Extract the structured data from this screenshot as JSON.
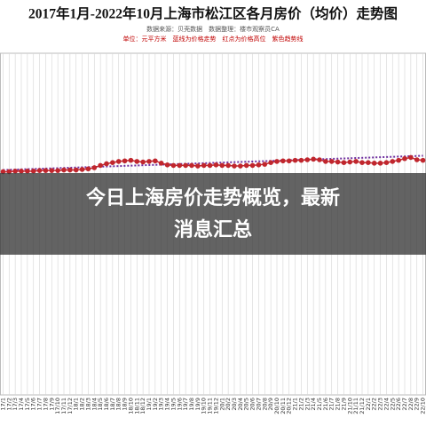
{
  "chart_data": {
    "type": "line",
    "title": "2017年1月-2022年10月上海市松江区各月房价（均价）走势图",
    "annotations": [
      "数据来源：贝壳数据　数据整理：楼市观察员CA",
      "单位：元平方米　蓝线为价格走势　红点为价格高位　紫色趋势线"
    ],
    "categories": [
      "17/1",
      "17/2",
      "17/3",
      "17/4",
      "17/5",
      "17/6",
      "17/7",
      "17/8",
      "17/9",
      "17/10",
      "17/11",
      "17/12",
      "18/1",
      "18/2",
      "18/3",
      "18/4",
      "18/5",
      "18/6",
      "18/7",
      "18/8",
      "18/9",
      "18/10",
      "18/11",
      "18/12",
      "19/1",
      "19/2",
      "19/3",
      "19/4",
      "19/5",
      "19/6",
      "19/7",
      "19/8",
      "19/9",
      "19/10",
      "19/11",
      "19/12",
      "20/1",
      "20/2",
      "20/3",
      "20/4",
      "20/5",
      "20/6",
      "20/7",
      "20/8",
      "20/9",
      "20/10",
      "20/11",
      "20/12",
      "21/1",
      "21/2",
      "21/3",
      "21/4",
      "21/5",
      "21/6",
      "21/7",
      "21/8",
      "21/9",
      "21/10",
      "21/11",
      "21/12",
      "22/1",
      "22/2",
      "22/3",
      "22/4",
      "22/5",
      "22/6",
      "22/7",
      "22/8",
      "22/9",
      "22/10"
    ],
    "series": [
      {
        "color": "#c0262d",
        "values": [
          39200,
          39200,
          39300,
          39300,
          39300,
          39300,
          39400,
          39400,
          39400,
          39400,
          39500,
          39500,
          39500,
          39600,
          39700,
          39900,
          40300,
          40600,
          40800,
          41000,
          41100,
          41200,
          41000,
          40900,
          41000,
          41100,
          40700,
          40400,
          40300,
          40300,
          40300,
          40300,
          40200,
          40300,
          40300,
          40400,
          40300,
          40300,
          40200,
          40200,
          40300,
          40300,
          40400,
          40500,
          40800,
          41000,
          41100,
          41100,
          41200,
          41200,
          41300,
          41400,
          41300,
          41000,
          41000,
          40900,
          40800,
          40900,
          41000,
          40800,
          40800,
          40700,
          40700,
          40800,
          41000,
          41200,
          41500,
          41700,
          41300,
          41200
        ]
      }
    ],
    "trend": {
      "color": "#7030a0",
      "values": [
        39500,
        42000
      ]
    },
    "ylim": [
      0,
      60000
    ],
    "grid": true
  },
  "overlay": {
    "lines": [
      "今日上海房价走势概览，最新",
      "消息汇总"
    ]
  }
}
